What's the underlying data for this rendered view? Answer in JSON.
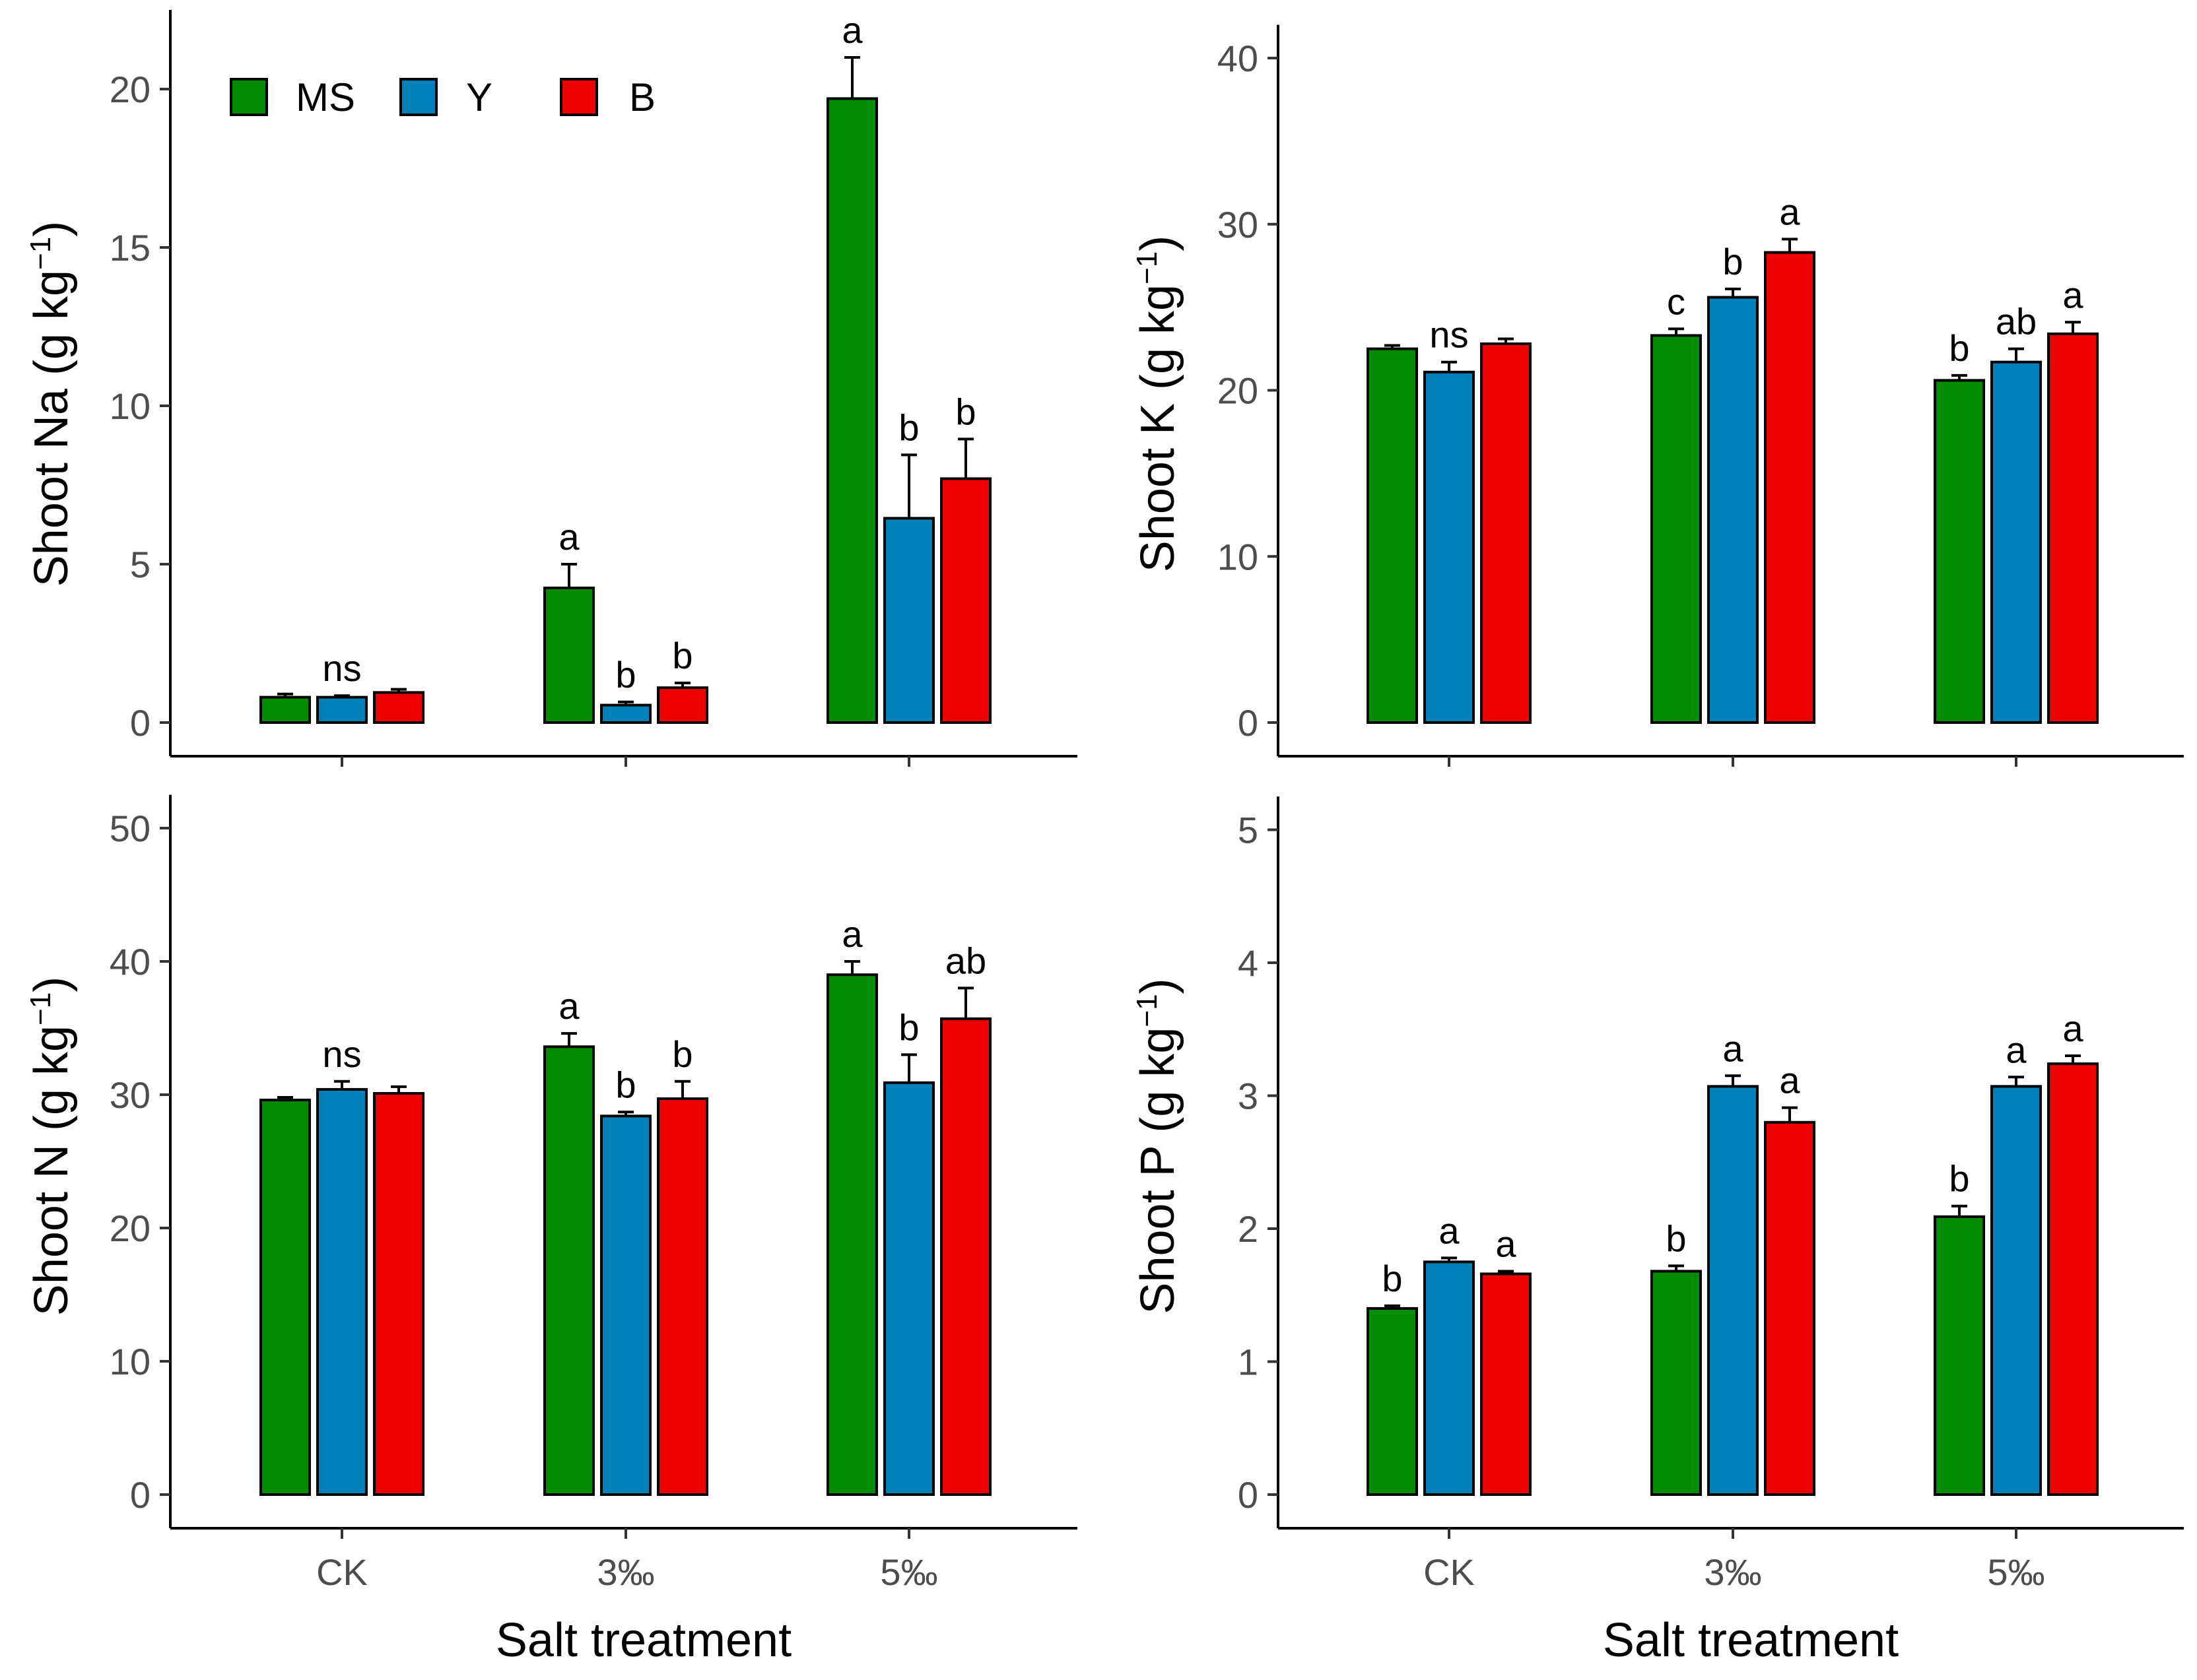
{
  "x_axis_title": "Salt treatment",
  "legend": [
    {
      "name": "MS",
      "color": "#008B00"
    },
    {
      "name": "Y",
      "color": "#0080B8"
    },
    {
      "name": "B",
      "color": "#EE0000"
    }
  ],
  "chart_data": [
    {
      "type": "bar",
      "panel": "top-left",
      "title": "",
      "ylabel_main": "Shoot Na (g kg",
      "ylabel_sup": "−1",
      "ylabel_end": ")",
      "xlabel": "",
      "categories": [
        "CK",
        "3‰",
        "5‰"
      ],
      "ylim": [
        0,
        22.5
      ],
      "yticks": [
        0,
        5,
        10,
        15,
        20
      ],
      "series": [
        {
          "name": "MS",
          "values": [
            0.8,
            4.25,
            19.7
          ],
          "errors": [
            0.1,
            0.75,
            1.3
          ]
        },
        {
          "name": "Y",
          "values": [
            0.8,
            0.55,
            6.45
          ],
          "errors": [
            0.05,
            0.1,
            2.0
          ]
        },
        {
          "name": "B",
          "values": [
            0.95,
            1.1,
            7.7
          ],
          "errors": [
            0.1,
            0.15,
            1.25
          ]
        }
      ],
      "letters": [
        [
          "",
          "ns",
          ""
        ],
        [
          "a",
          "b",
          "b"
        ],
        [
          "a",
          "b",
          "b"
        ]
      ]
    },
    {
      "type": "bar",
      "panel": "top-right",
      "title": "",
      "ylabel_main": "Shoot K (g kg",
      "ylabel_sup": "−1",
      "ylabel_end": ")",
      "xlabel": "",
      "categories": [
        "CK",
        "3‰",
        "5‰"
      ],
      "ylim": [
        0,
        42
      ],
      "yticks": [
        0,
        10,
        20,
        30,
        40
      ],
      "series": [
        {
          "name": "MS",
          "values": [
            22.5,
            23.3,
            20.6
          ],
          "errors": [
            0.2,
            0.4,
            0.3
          ]
        },
        {
          "name": "Y",
          "values": [
            21.1,
            25.6,
            21.7
          ],
          "errors": [
            0.6,
            0.5,
            0.8
          ]
        },
        {
          "name": "B",
          "values": [
            22.8,
            28.3,
            23.4
          ],
          "errors": [
            0.3,
            0.8,
            0.7
          ]
        }
      ],
      "letters": [
        [
          "",
          "ns",
          ""
        ],
        [
          "c",
          "b",
          "a"
        ],
        [
          "b",
          "ab",
          "a"
        ]
      ]
    },
    {
      "type": "bar",
      "panel": "bottom-left",
      "title": "",
      "ylabel_main": "Shoot N (g kg",
      "ylabel_sup": "−1",
      "ylabel_end": ")",
      "xlabel": "Salt treatment",
      "categories": [
        "CK",
        "3‰",
        "5‰"
      ],
      "ylim": [
        0,
        52.5
      ],
      "yticks": [
        0,
        10,
        20,
        30,
        40,
        50
      ],
      "series": [
        {
          "name": "MS",
          "values": [
            29.6,
            33.6,
            39.0
          ],
          "errors": [
            0.2,
            1.0,
            1.0
          ]
        },
        {
          "name": "Y",
          "values": [
            30.4,
            28.4,
            30.9
          ],
          "errors": [
            0.6,
            0.3,
            2.1
          ]
        },
        {
          "name": "B",
          "values": [
            30.1,
            29.7,
            35.7
          ],
          "errors": [
            0.5,
            1.3,
            2.3
          ]
        }
      ],
      "letters": [
        [
          "",
          "ns",
          ""
        ],
        [
          "a",
          "b",
          "b"
        ],
        [
          "a",
          "b",
          "ab"
        ]
      ]
    },
    {
      "type": "bar",
      "panel": "bottom-right",
      "title": "",
      "ylabel_main": "Shoot P (g kg",
      "ylabel_sup": "−1",
      "ylabel_end": ")",
      "xlabel": "Salt treatment",
      "categories": [
        "CK",
        "3‰",
        "5‰"
      ],
      "ylim": [
        0,
        5.25
      ],
      "yticks": [
        0,
        1,
        2,
        3,
        4,
        5
      ],
      "series": [
        {
          "name": "MS",
          "values": [
            1.4,
            1.68,
            2.09
          ],
          "errors": [
            0.02,
            0.04,
            0.08
          ]
        },
        {
          "name": "Y",
          "values": [
            1.75,
            3.07,
            3.07
          ],
          "errors": [
            0.03,
            0.08,
            0.07
          ]
        },
        {
          "name": "B",
          "values": [
            1.66,
            2.8,
            3.24
          ],
          "errors": [
            0.02,
            0.11,
            0.06
          ]
        }
      ],
      "letters": [
        [
          "b",
          "a",
          "a"
        ],
        [
          "b",
          "a",
          "a"
        ],
        [
          "b",
          "a",
          "a"
        ]
      ]
    }
  ]
}
